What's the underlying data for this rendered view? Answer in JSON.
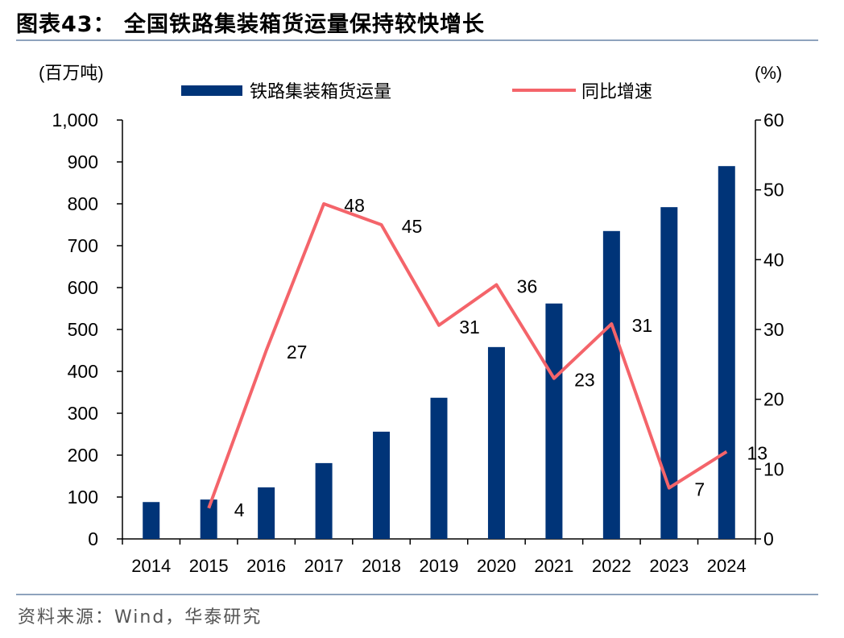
{
  "title": "图表43：  全国铁路集装箱货运量保持较快增长",
  "source": "资料来源：Wind，华泰研究",
  "chart_data": {
    "type": "bar+line",
    "title": "全国铁路集装箱货运量保持较快增长",
    "left_unit": "(百万吨)",
    "right_unit": "(%)",
    "categories": [
      "2014",
      "2015",
      "2016",
      "2017",
      "2018",
      "2019",
      "2020",
      "2021",
      "2022",
      "2023",
      "2024"
    ],
    "series": [
      {
        "name": "铁路集装箱货运量",
        "type": "bar",
        "axis": "left",
        "color": "#003478",
        "values": [
          88,
          94,
          123,
          181,
          256,
          337,
          458,
          562,
          735,
          792,
          890
        ]
      },
      {
        "name": "同比增速",
        "type": "line",
        "axis": "right",
        "color": "#f4646a",
        "values": [
          null,
          4.4,
          27,
          48,
          45,
          30.6,
          36.4,
          23,
          30.8,
          7.3,
          12.5
        ],
        "labels": [
          "",
          "4",
          "27",
          "48",
          "45",
          "31",
          "36",
          "23",
          "31",
          "7",
          "13"
        ]
      }
    ],
    "ylim_left": [
      0,
      1000
    ],
    "yticks_left": [
      "0",
      "100",
      "200",
      "300",
      "400",
      "500",
      "600",
      "700",
      "800",
      "900",
      "1,000"
    ],
    "ylim_right": [
      0,
      60
    ],
    "yticks_right": [
      "0",
      "10",
      "20",
      "30",
      "40",
      "50",
      "60"
    ],
    "legend": "top",
    "grid": false
  }
}
